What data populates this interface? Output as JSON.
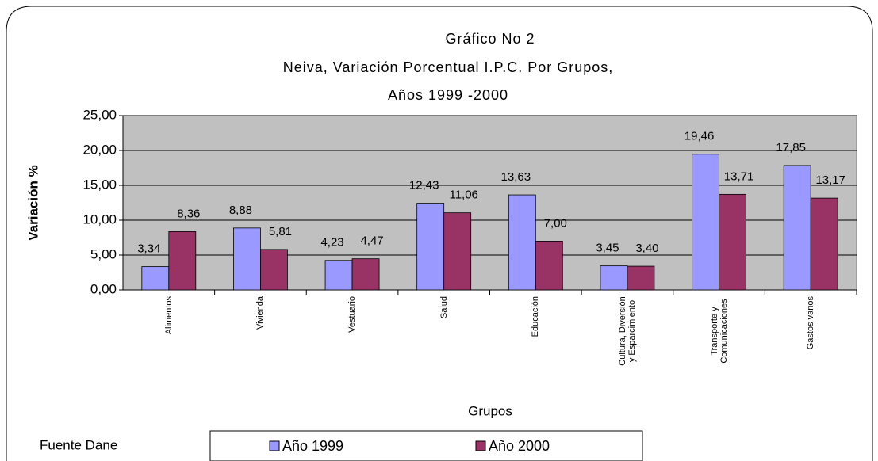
{
  "chart_data": {
    "type": "bar",
    "title": [
      "Gráfico No 2",
      "Neiva, Variación Porcentual I.P.C. Por Grupos,",
      "Años 1999 -2000"
    ],
    "x_label": "Grupos",
    "y_label": "Variación %",
    "source": "Fuente Dane",
    "categories": [
      "Alimentos",
      "Vivienda",
      "Vestuario",
      "Salud",
      "Educación",
      "Cultura, Diversión y Esparcimiento",
      "Transporte y Comunicaciones",
      "Gastos varios"
    ],
    "series": [
      {
        "name": "Año 1999",
        "color": "#9999ff",
        "values": [
          3.34,
          8.88,
          4.23,
          12.43,
          13.63,
          3.45,
          19.46,
          17.85
        ],
        "value_labels": [
          "3,34",
          "8,88",
          "4,23",
          "12,43",
          "13,63",
          "3,45",
          "19,46",
          "17,85"
        ]
      },
      {
        "name": "Año 2000",
        "color": "#993366",
        "values": [
          8.36,
          5.81,
          4.47,
          11.06,
          7.0,
          3.4,
          13.71,
          13.17
        ],
        "value_labels": [
          "8,36",
          "5,81",
          "4,47",
          "11,06",
          "7,00",
          "3,40",
          "13,71",
          "13,17"
        ]
      }
    ],
    "ylim": [
      0,
      25
    ],
    "yticks": [
      {
        "value": 0,
        "label": "0,00"
      },
      {
        "value": 5,
        "label": "5,00"
      },
      {
        "value": 10,
        "label": "10,00"
      },
      {
        "value": 15,
        "label": "15,00"
      },
      {
        "value": 20,
        "label": "20,00"
      },
      {
        "value": 25,
        "label": "25,00"
      }
    ],
    "grid": true,
    "plot_background": "#c0c0c0",
    "legend": "bottom"
  }
}
